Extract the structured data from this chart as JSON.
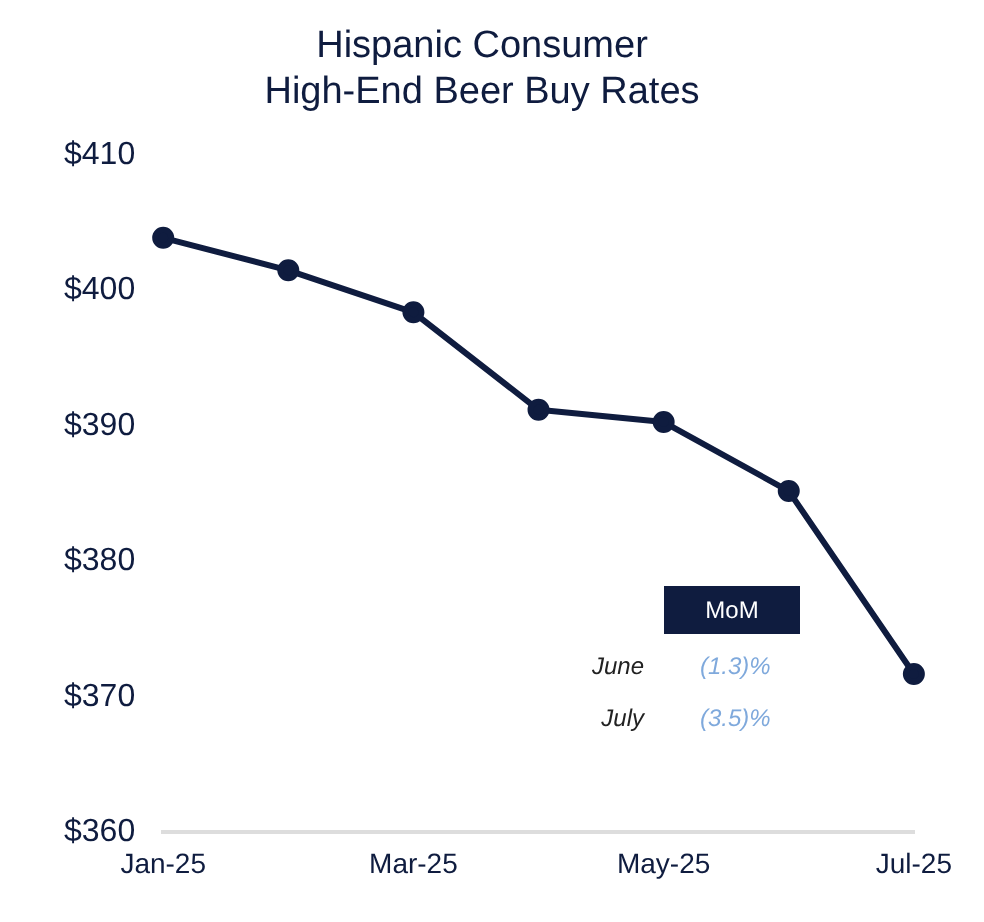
{
  "chart_data": {
    "type": "line",
    "title": "Hispanic Consumer\nHigh-End Beer Buy Rates",
    "categories": [
      "Jan-25",
      null,
      "Mar-25",
      null,
      "May-25",
      null,
      "Jul-25"
    ],
    "series": [
      {
        "color": "#0f1c3f",
        "values": [
          403.9,
          401.5,
          398.4,
          391.2,
          390.3,
          385.2,
          371.7
        ]
      }
    ],
    "ylim": [
      360,
      410
    ],
    "yticks": [
      {
        "value": 360,
        "label": "$360"
      },
      {
        "value": 370,
        "label": "$370"
      },
      {
        "value": 380,
        "label": "$380"
      },
      {
        "value": 390,
        "label": "$390"
      },
      {
        "value": 400,
        "label": "$400"
      },
      {
        "value": 410,
        "label": "$410"
      }
    ],
    "grid": false,
    "legend": false,
    "marker": "circle",
    "line_style": "solid",
    "annotations": [
      "MoM",
      "June",
      "(1.3)%",
      "July",
      "(3.5)%"
    ]
  }
}
